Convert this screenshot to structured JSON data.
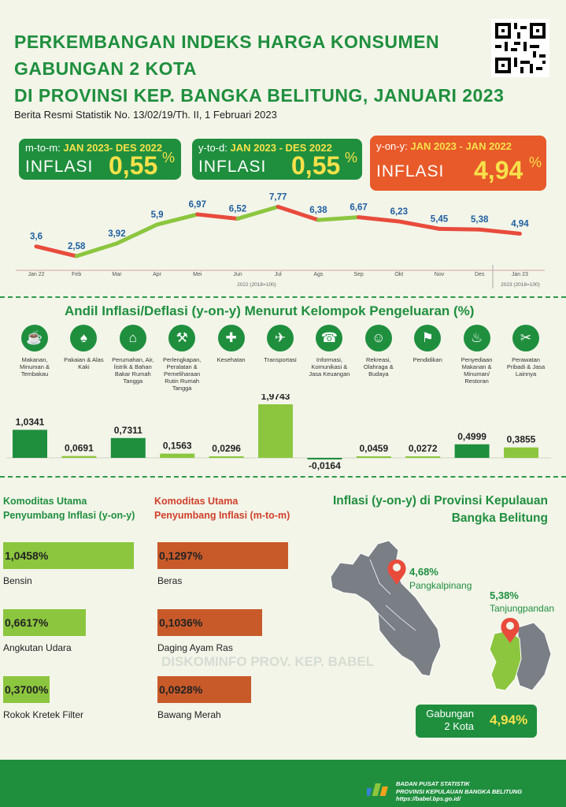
{
  "header": {
    "title_lines": [
      "PERKEMBANGAN INDEKS HARGA KONSUMEN",
      "GABUNGAN 2 KOTA",
      "DI PROVINSI KEP. BANGKA BELITUNG, JANUARI 2023"
    ],
    "subtitle": "Berita Resmi Statistik No. 13/02/19/Th. II, 1 Februari 2023"
  },
  "boxes": [
    {
      "prefix": "m-to-m:",
      "period": "JAN 2023- DES 2022",
      "label": "INFLASI",
      "value": "0,55",
      "unit": "%",
      "color": "#1f8f3e"
    },
    {
      "prefix": "y-to-d:",
      "period": "JAN 2023 - DES 2022",
      "label": "INFLASI",
      "value": "0,55",
      "unit": "%",
      "color": "#1f8f3e"
    },
    {
      "prefix": "y-on-y:",
      "period": "JAN 2023 - JAN 2022",
      "label": "INFLASI",
      "value": "4,94",
      "unit": "%",
      "color": "#e85a2a"
    }
  ],
  "chart_data": [
    {
      "type": "line",
      "categories": [
        "Jan 22",
        "Feb",
        "Mar",
        "Apr",
        "Mei",
        "Jun",
        "Jul",
        "Ags",
        "Sep",
        "Okt",
        "Nov",
        "Des",
        "Jan 23"
      ],
      "values": [
        3.6,
        2.58,
        3.92,
        5.9,
        6.97,
        6.52,
        7.77,
        6.38,
        6.67,
        6.23,
        5.45,
        5.38,
        4.94
      ],
      "value_labels": [
        "3,6",
        "2,58",
        "3,92",
        "5,9",
        "6,97",
        "6,52",
        "7,77",
        "6,38",
        "6,67",
        "6,23",
        "5,45",
        "5,38",
        "4,94"
      ],
      "base_notes": [
        "2022 (2018=100)",
        "2023 (2018=100)"
      ],
      "colors": {
        "up": "#8cc63f",
        "down": "#e84b3c",
        "label": "#1f5fa0"
      }
    },
    {
      "type": "bar",
      "title": "Andil Inflasi/Deflasi (y-on-y) Menurut Kelompok Pengeluaran (%)",
      "categories": [
        "Makanan, Minuman & Tembakau",
        "Pakaian & Alas Kaki",
        "Perumahan, Air, listrik & Bahan Bakar Rumah Tangga",
        "Perlengkapan, Peralatan & Pemeliharaan Rutin Rumah Tangga",
        "Kesehatan",
        "Transportasi",
        "Informasi, Komunikasi & Jasa Keuangan",
        "Rekreasi, Olahraga & Budaya",
        "Pendidikan",
        "Penyediaan Makanan & Minuman/ Restoran",
        "Perawatan Pribadi & Jasa Lainnya"
      ],
      "values": [
        1.0341,
        0.0691,
        0.7311,
        0.1563,
        0.0296,
        1.9743,
        -0.0164,
        0.0459,
        0.0272,
        0.4999,
        0.3855
      ],
      "value_labels": [
        "1,0341",
        "0,0691",
        "0,7311",
        "0,1563",
        "0,0296",
        "1,9743",
        "-0,0164",
        "0,0459",
        "0,0272",
        "0,4999",
        "0,3855"
      ],
      "icons": [
        "food-icon",
        "dress-icon",
        "house-icon",
        "tools-icon",
        "medkit-icon",
        "airplane-icon",
        "phone-icon",
        "running-icon",
        "graduation-cap-icon",
        "restaurant-icon",
        "grooming-icon"
      ],
      "colors": [
        "#1f8f3e",
        "#8cc63f",
        "#1f8f3e",
        "#8cc63f",
        "#8cc63f",
        "#8cc63f",
        "#1f8f3e",
        "#8cc63f",
        "#8cc63f",
        "#1f8f3e",
        "#8cc63f"
      ]
    },
    {
      "type": "bar",
      "title_lines": [
        "Komoditas Utama",
        "Penyumbang Inflasi (y-on-y)"
      ],
      "categories": [
        "Bensin",
        "Angkutan Udara",
        "Rokok Kretek Filter"
      ],
      "values": [
        1.0458,
        0.6617,
        0.37
      ],
      "value_labels": [
        "1,0458%",
        "0,6617%",
        "0,3700%"
      ],
      "color": "#8cc63f"
    },
    {
      "type": "bar",
      "title_lines": [
        "Komoditas Utama",
        "Penyumbang Inflasi (m-to-m)"
      ],
      "categories": [
        "Beras",
        "Daging Ayam Ras",
        "Bawang Merah"
      ],
      "values": [
        0.1297,
        0.1036,
        0.0928
      ],
      "value_labels": [
        "0,1297%",
        "0,1036%",
        "0,0928%"
      ],
      "color": "#c85a2a"
    }
  ],
  "map": {
    "title_lines": [
      "Inflasi (y-on-y) di Provinsi Kepulauan",
      "Bangka Belitung"
    ],
    "cities": [
      {
        "name": "Pangkalpinang",
        "value": "4,68%"
      },
      {
        "name": "Tanjungpandan",
        "value": "5,38%"
      }
    ],
    "combined_label_lines": [
      "Gabungan",
      "2 Kota"
    ],
    "combined_value": "4,94%",
    "watermark": "DISKOMINFO PROV. KEP. BABEL"
  },
  "footer": {
    "org_lines": [
      "BADAN PUSAT STATISTIK",
      "PROVINSI KEPULAUAN BANGKA BELITUNG"
    ],
    "url": "https://babel.bps.go.id/"
  }
}
